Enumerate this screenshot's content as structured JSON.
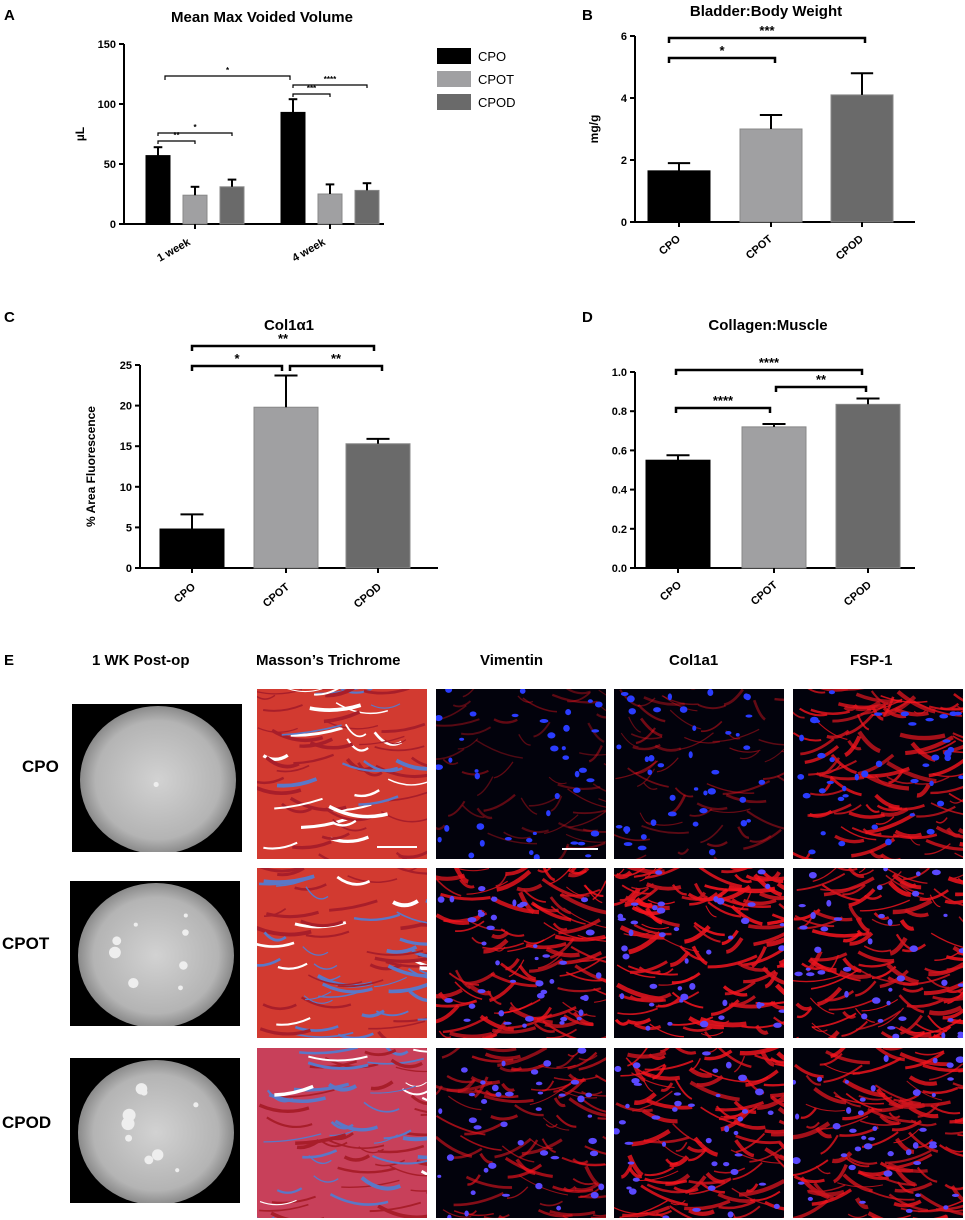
{
  "panel_letters": {
    "a": "A",
    "b": "B",
    "c": "C",
    "d": "D",
    "e": "E"
  },
  "colors": {
    "CPO": "#000000",
    "CPOT": "#a0a0a2",
    "CPOD": "#6a6a6a"
  },
  "chart_data": [
    {
      "id": "A",
      "type": "bar",
      "title": "Mean Max Voided Volume",
      "ylabel": "µL",
      "xlabel": "",
      "categories": [
        "1 week",
        "4 week"
      ],
      "series": [
        {
          "name": "CPO",
          "values": [
            57,
            93
          ],
          "errors": [
            7,
            11
          ]
        },
        {
          "name": "CPOT",
          "values": [
            24,
            25
          ],
          "errors": [
            7,
            8
          ]
        },
        {
          "name": "CPOD",
          "values": [
            31,
            28
          ],
          "errors": [
            6,
            6
          ]
        }
      ],
      "ylim": [
        0,
        150
      ],
      "yticks": [
        "0",
        "50",
        "100",
        "150"
      ],
      "legend": [
        "CPO",
        "CPOT",
        "CPOD"
      ],
      "legend_position": "right",
      "significance": [
        "*",
        "**",
        "*",
        "***",
        "****"
      ]
    },
    {
      "id": "B",
      "type": "bar",
      "title": "Bladder:Body Weight",
      "ylabel": "mg/g",
      "xlabel": "",
      "categories": [
        "CPO",
        "CPOT",
        "CPOD"
      ],
      "values": [
        1.65,
        3.0,
        4.1
      ],
      "errors": [
        0.25,
        0.45,
        0.7
      ],
      "ylim": [
        0,
        6
      ],
      "yticks": [
        "0",
        "2",
        "4",
        "6"
      ],
      "significance": [
        "*",
        "***"
      ]
    },
    {
      "id": "C",
      "type": "bar",
      "title": "Col1α1",
      "ylabel": "% Area Fluorescence",
      "xlabel": "",
      "categories": [
        "CPO",
        "CPOT",
        "CPOD"
      ],
      "values": [
        4.8,
        19.8,
        15.3
      ],
      "errors": [
        1.8,
        3.9,
        0.6
      ],
      "ylim": [
        0,
        25
      ],
      "yticks": [
        "0",
        "5",
        "10",
        "15",
        "20",
        "25"
      ],
      "significance": [
        "**",
        "*",
        "**"
      ]
    },
    {
      "id": "D",
      "type": "bar",
      "title": "Collagen:Muscle",
      "ylabel": "",
      "xlabel": "",
      "categories": [
        "CPO",
        "CPOT",
        "CPOD"
      ],
      "values": [
        0.55,
        0.72,
        0.835
      ],
      "errors": [
        0.025,
        0.015,
        0.03
      ],
      "ylim": [
        0,
        1.0
      ],
      "yticks": [
        "0.0",
        "0.2",
        "0.4",
        "0.6",
        "0.8",
        "1.0"
      ],
      "significance": [
        "****",
        "****",
        "**"
      ]
    }
  ],
  "image_panel": {
    "headers": [
      "1 WK Post-op",
      "Masson’s Trichrome",
      "Vimentin",
      "Col1a1",
      "FSP-1"
    ],
    "rows": [
      "CPO",
      "CPOT",
      "CPOD"
    ]
  }
}
